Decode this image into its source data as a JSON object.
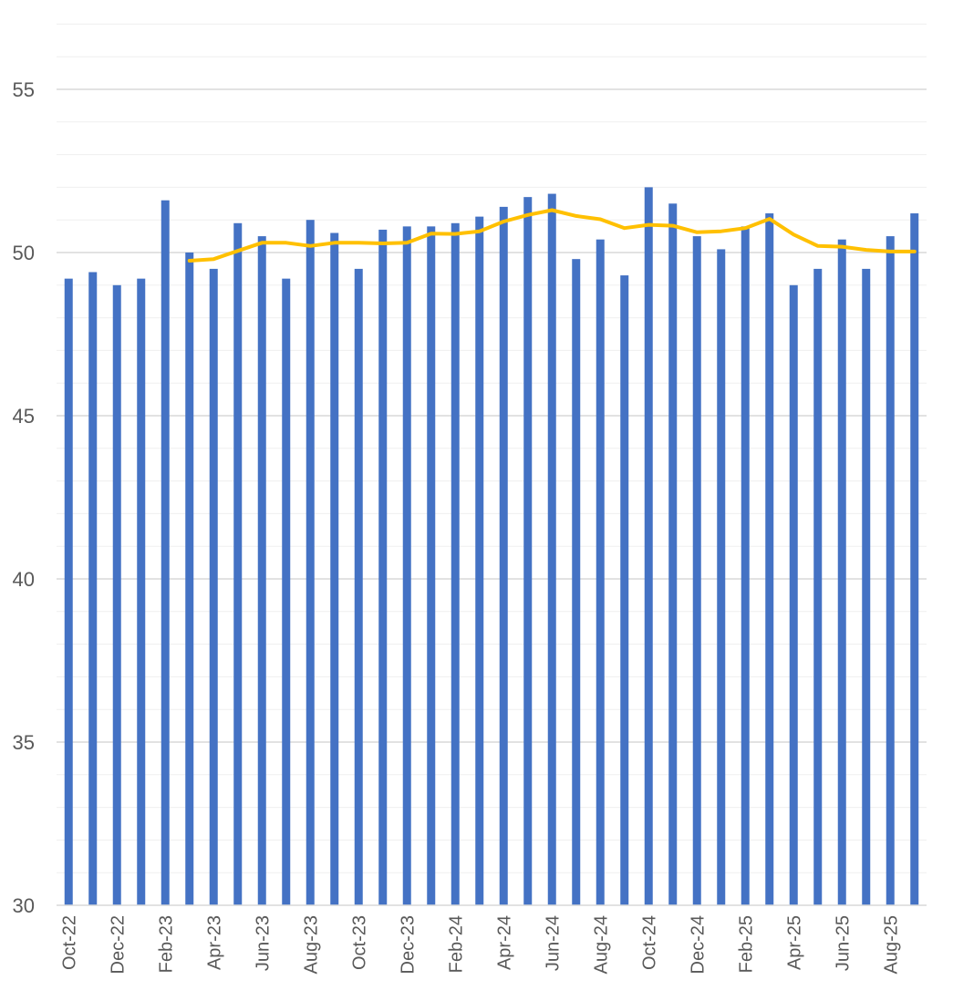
{
  "chart_data": {
    "type": "bar",
    "title": "",
    "xlabel": "",
    "ylabel": "",
    "ylim": [
      30,
      57
    ],
    "y_ticks": [
      30,
      35,
      40,
      45,
      50,
      55
    ],
    "grid": true,
    "legend": "none",
    "categories": [
      "Oct-22",
      "Nov-22",
      "Dec-22",
      "Jan-23",
      "Feb-23",
      "Mar-23",
      "Apr-23",
      "May-23",
      "Jun-23",
      "Jul-23",
      "Aug-23",
      "Sep-23",
      "Oct-23",
      "Nov-23",
      "Dec-23",
      "Jan-24",
      "Feb-24",
      "Mar-24",
      "Apr-24",
      "May-24",
      "Jun-24",
      "Jul-24",
      "Aug-24",
      "Sep-24",
      "Oct-24",
      "Nov-24",
      "Dec-24",
      "Jan-25",
      "Feb-25",
      "Mar-25",
      "Apr-25",
      "May-25",
      "Jun-25",
      "Jul-25",
      "Aug-25",
      "Sep-25"
    ],
    "x_tick_labels": [
      "Oct-22",
      "Dec-22",
      "Feb-23",
      "Apr-23",
      "Jun-23",
      "Aug-23",
      "Oct-23",
      "Dec-23",
      "Feb-24",
      "Apr-24",
      "Jun-24",
      "Aug-24",
      "Oct-24",
      "Dec-24",
      "Feb-25",
      "Apr-25",
      "Jun-25",
      "Aug-25"
    ],
    "series": [
      {
        "type": "bar",
        "color": "#4472C4",
        "values": [
          49.2,
          49.4,
          49.0,
          49.2,
          51.6,
          50.0,
          49.5,
          50.9,
          50.5,
          49.2,
          51.0,
          50.6,
          49.5,
          50.7,
          50.8,
          50.8,
          50.9,
          51.1,
          51.4,
          51.7,
          51.8,
          49.8,
          50.4,
          49.3,
          52.0,
          51.5,
          50.5,
          50.1,
          50.8,
          51.2,
          49.0,
          49.5,
          50.4,
          49.5,
          50.5,
          51.2
        ]
      },
      {
        "type": "line",
        "color": "#FFC000",
        "values": [
          null,
          null,
          null,
          null,
          null,
          49.75,
          49.8,
          50.05,
          50.3,
          50.3,
          50.2,
          50.3,
          50.3,
          50.28,
          50.3,
          50.58,
          50.57,
          50.65,
          50.95,
          51.15,
          51.3,
          51.12,
          51.02,
          50.75,
          50.85,
          50.82,
          50.62,
          50.65,
          50.75,
          51.03,
          50.55,
          50.2,
          50.18,
          50.08,
          50.03,
          50.03
        ]
      }
    ]
  }
}
